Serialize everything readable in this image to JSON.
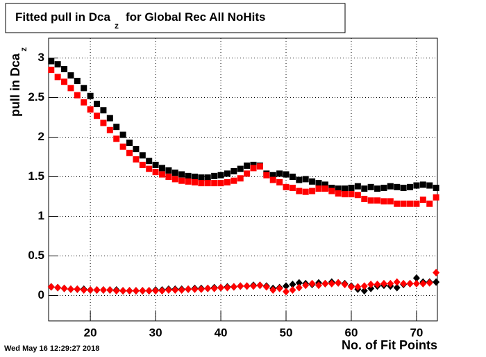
{
  "chart_data": {
    "type": "scatter",
    "title": {
      "text": "Fitted pull in Dca",
      "sub": "z",
      "rest": "for Global Rec All NoHits"
    },
    "ylabel": {
      "text": "pull in Dca",
      "sub": "z"
    },
    "xlabel": "No. of Fit Points",
    "timestamp": "Wed May 16 12:29:27 2018",
    "x": [
      14,
      15,
      16,
      17,
      18,
      19,
      20,
      21,
      22,
      23,
      24,
      25,
      26,
      27,
      28,
      29,
      30,
      31,
      32,
      33,
      34,
      35,
      36,
      37,
      38,
      39,
      40,
      41,
      42,
      43,
      44,
      45,
      46,
      47,
      48,
      49,
      50,
      51,
      52,
      53,
      54,
      55,
      56,
      57,
      58,
      59,
      60,
      61,
      62,
      63,
      64,
      65,
      66,
      67,
      68,
      69,
      70,
      71,
      72,
      73
    ],
    "series": [
      {
        "color": "#000000",
        "marker": "square",
        "values": [
          2.96,
          2.92,
          2.86,
          2.78,
          2.71,
          2.62,
          2.52,
          2.42,
          2.34,
          2.24,
          2.13,
          2.03,
          1.93,
          1.85,
          1.77,
          1.7,
          1.65,
          1.61,
          1.58,
          1.55,
          1.53,
          1.51,
          1.5,
          1.49,
          1.49,
          1.51,
          1.52,
          1.54,
          1.57,
          1.6,
          1.64,
          1.65,
          1.64,
          1.54,
          1.52,
          1.54,
          1.53,
          1.5,
          1.46,
          1.47,
          1.44,
          1.42,
          1.4,
          1.36,
          1.35,
          1.35,
          1.36,
          1.38,
          1.35,
          1.37,
          1.35,
          1.36,
          1.38,
          1.37,
          1.36,
          1.37,
          1.39,
          1.4,
          1.39,
          1.36
        ]
      },
      {
        "color": "#ff0000",
        "marker": "square",
        "values": [
          2.85,
          2.76,
          2.7,
          2.62,
          2.53,
          2.44,
          2.35,
          2.27,
          2.18,
          2.09,
          1.98,
          1.88,
          1.8,
          1.72,
          1.65,
          1.6,
          1.56,
          1.53,
          1.5,
          1.47,
          1.45,
          1.44,
          1.43,
          1.42,
          1.42,
          1.42,
          1.42,
          1.43,
          1.45,
          1.48,
          1.54,
          1.61,
          1.63,
          1.52,
          1.46,
          1.43,
          1.37,
          1.36,
          1.32,
          1.31,
          1.32,
          1.35,
          1.35,
          1.32,
          1.29,
          1.28,
          1.28,
          1.27,
          1.22,
          1.2,
          1.2,
          1.19,
          1.19,
          1.16,
          1.16,
          1.16,
          1.16,
          1.21,
          1.16,
          1.24
        ]
      },
      {
        "color": "#000000",
        "marker": "diamond",
        "values": [
          0.11,
          0.1,
          0.09,
          0.08,
          0.08,
          0.08,
          0.07,
          0.07,
          0.07,
          0.07,
          0.07,
          0.06,
          0.06,
          0.06,
          0.06,
          0.06,
          0.07,
          0.07,
          0.08,
          0.08,
          0.08,
          0.08,
          0.09,
          0.09,
          0.09,
          0.1,
          0.1,
          0.11,
          0.11,
          0.12,
          0.12,
          0.13,
          0.13,
          0.12,
          0.09,
          0.1,
          0.12,
          0.14,
          0.16,
          0.15,
          0.14,
          0.16,
          0.15,
          0.17,
          0.16,
          0.15,
          0.12,
          0.08,
          0.06,
          0.09,
          0.12,
          0.13,
          0.12,
          0.1,
          0.14,
          0.15,
          0.22,
          0.17,
          0.17,
          0.17
        ]
      },
      {
        "color": "#ff0000",
        "marker": "diamond",
        "values": [
          0.11,
          0.1,
          0.09,
          0.08,
          0.08,
          0.07,
          0.07,
          0.07,
          0.07,
          0.07,
          0.06,
          0.06,
          0.06,
          0.06,
          0.06,
          0.06,
          0.06,
          0.06,
          0.07,
          0.07,
          0.07,
          0.08,
          0.08,
          0.08,
          0.09,
          0.09,
          0.1,
          0.1,
          0.11,
          0.12,
          0.12,
          0.12,
          0.13,
          0.11,
          0.07,
          0.09,
          0.05,
          0.07,
          0.1,
          0.13,
          0.15,
          0.13,
          0.15,
          0.15,
          0.16,
          0.14,
          0.11,
          0.11,
          0.12,
          0.14,
          0.14,
          0.15,
          0.15,
          0.17,
          0.15,
          0.15,
          0.15,
          0.15,
          0.16,
          0.29
        ]
      }
    ],
    "xlim": [
      13.6,
      73.2
    ],
    "ylim": [
      -0.32,
      3.25
    ],
    "xticks": [
      20,
      30,
      40,
      50,
      60,
      70
    ],
    "yticks": [
      0,
      0.5,
      1,
      1.5,
      2,
      2.5,
      3
    ],
    "grid": true
  }
}
